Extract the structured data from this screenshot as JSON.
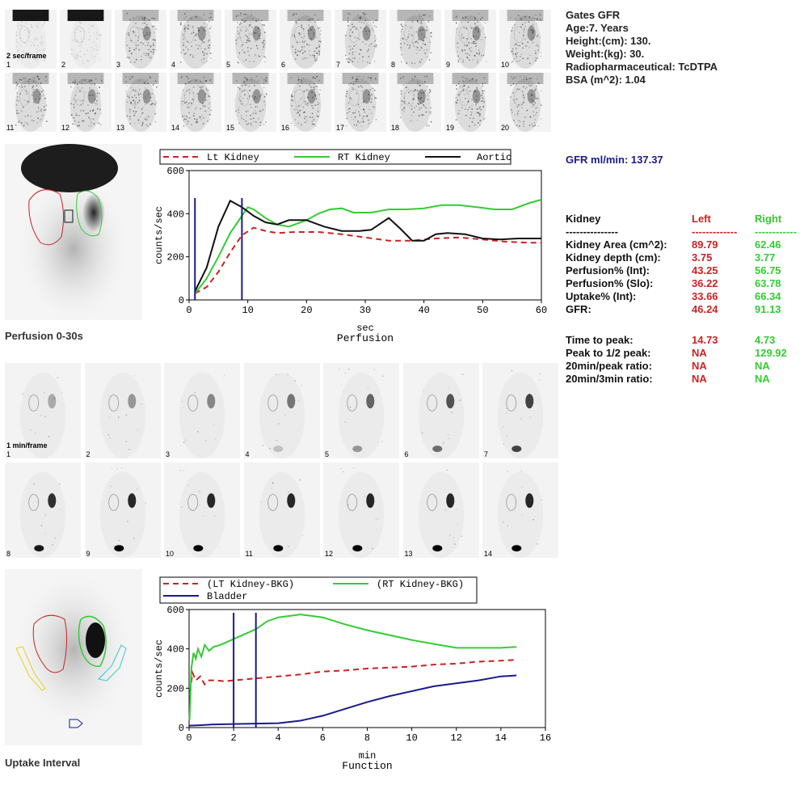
{
  "info": {
    "title": "Gates GFR",
    "age": "Age:7. Years",
    "height": "Height:(cm): 130.",
    "weight": "Weight:(kg): 30.",
    "radiopharm": "Radiopharmaceutical: TcDTPA",
    "bsa": "BSA (m^2): 1.04"
  },
  "gfr_total": "GFR ml/min: 137.37",
  "flow_frames": {
    "rate": "2 sec/frame",
    "numbers": [
      "1",
      "2",
      "3",
      "4",
      "5",
      "6",
      "7",
      "8",
      "9",
      "10",
      "11",
      "12",
      "13",
      "14",
      "15",
      "16",
      "17",
      "18",
      "19",
      "20"
    ]
  },
  "uptake_frames": {
    "rate": "1 min/frame",
    "numbers": [
      "1",
      "2",
      "3",
      "4",
      "5",
      "6",
      "7",
      "8",
      "9",
      "10",
      "11",
      "12",
      "13",
      "14"
    ]
  },
  "labels": {
    "perfusion_panel": "Perfusion 0-30s",
    "uptake_panel": "Uptake Interval"
  },
  "results": {
    "header": [
      "Kidney",
      "Left",
      "Right"
    ],
    "dashes": [
      "---------------",
      "-------------",
      "------------"
    ],
    "rows": [
      [
        "Kidney Area (cm^2):",
        "89.79",
        "62.46"
      ],
      [
        "Kidney depth (cm):",
        "3.75",
        "3.77"
      ],
      [
        "Perfusion% (Int):",
        "43.25",
        "56.75"
      ],
      [
        "Perfusion% (Slo):",
        "36.22",
        "63.78"
      ],
      [
        "Uptake% (Int):",
        "33.66",
        "66.34"
      ],
      [
        "GFR:",
        "46.24",
        "91.13"
      ]
    ],
    "timing_rows": [
      [
        "Time to peak:",
        "14.73",
        "4.73"
      ],
      [
        "Peak to 1/2 peak:",
        "NA",
        "129.92"
      ],
      [
        "20min/peak ratio:",
        "NA",
        "NA"
      ],
      [
        "20min/3min ratio:",
        "NA",
        "NA"
      ]
    ]
  },
  "chart_data": [
    {
      "type": "line",
      "title": "Perfusion",
      "xlabel": "sec",
      "ylabel": "counts/sec",
      "xlim": [
        0,
        60
      ],
      "ylim": [
        0,
        600
      ],
      "xticks": [
        0,
        10,
        20,
        30,
        40,
        50,
        60
      ],
      "yticks": [
        0,
        200,
        400,
        600
      ],
      "vlines": [
        1,
        9
      ],
      "series": [
        {
          "name": "Lt Kidney",
          "color": "#cc2222",
          "dash": true,
          "points": [
            [
              1,
              30
            ],
            [
              3,
              60
            ],
            [
              5,
              130
            ],
            [
              7,
              220
            ],
            [
              9,
              300
            ],
            [
              11,
              335
            ],
            [
              13,
              320
            ],
            [
              15,
              310
            ],
            [
              18,
              315
            ],
            [
              22,
              315
            ],
            [
              26,
              305
            ],
            [
              30,
              290
            ],
            [
              34,
              275
            ],
            [
              38,
              275
            ],
            [
              42,
              285
            ],
            [
              46,
              290
            ],
            [
              50,
              280
            ],
            [
              54,
              270
            ],
            [
              58,
              265
            ],
            [
              60,
              265
            ]
          ]
        },
        {
          "name": "RT Kidney",
          "color": "#33cc33",
          "dash": false,
          "points": [
            [
              1,
              30
            ],
            [
              3,
              100
            ],
            [
              5,
              200
            ],
            [
              7,
              310
            ],
            [
              9,
              390
            ],
            [
              10,
              430
            ],
            [
              11,
              420
            ],
            [
              13,
              380
            ],
            [
              15,
              350
            ],
            [
              17,
              340
            ],
            [
              20,
              370
            ],
            [
              22,
              400
            ],
            [
              24,
              420
            ],
            [
              26,
              425
            ],
            [
              28,
              405
            ],
            [
              31,
              405
            ],
            [
              34,
              420
            ],
            [
              37,
              420
            ],
            [
              40,
              425
            ],
            [
              43,
              440
            ],
            [
              46,
              440
            ],
            [
              49,
              430
            ],
            [
              52,
              420
            ],
            [
              55,
              420
            ],
            [
              58,
              450
            ],
            [
              60,
              465
            ]
          ]
        },
        {
          "name": "Aortic",
          "color": "#111111",
          "dash": false,
          "points": [
            [
              1,
              40
            ],
            [
              3,
              150
            ],
            [
              5,
              340
            ],
            [
              7,
              460
            ],
            [
              9,
              430
            ],
            [
              10,
              410
            ],
            [
              11,
              390
            ],
            [
              13,
              360
            ],
            [
              15,
              350
            ],
            [
              17,
              370
            ],
            [
              20,
              370
            ],
            [
              23,
              340
            ],
            [
              26,
              320
            ],
            [
              29,
              320
            ],
            [
              31,
              325
            ],
            [
              34,
              380
            ],
            [
              36,
              330
            ],
            [
              38,
              275
            ],
            [
              40,
              275
            ],
            [
              42,
              305
            ],
            [
              44,
              310
            ],
            [
              47,
              305
            ],
            [
              50,
              285
            ],
            [
              53,
              280
            ],
            [
              56,
              285
            ],
            [
              60,
              285
            ]
          ]
        }
      ]
    },
    {
      "type": "line",
      "title": "Function",
      "xlabel": "min",
      "ylabel": "counts/sec",
      "xlim": [
        0,
        16
      ],
      "ylim": [
        0,
        600
      ],
      "xticks": [
        0,
        2,
        4,
        6,
        8,
        10,
        12,
        14,
        16
      ],
      "yticks": [
        0,
        200,
        400,
        600
      ],
      "vlines": [
        2,
        3
      ],
      "series": [
        {
          "name": "(LT Kidney-BKG)",
          "color": "#cc2222",
          "dash": true,
          "points": [
            [
              0.05,
              180
            ],
            [
              0.15,
              280
            ],
            [
              0.3,
              240
            ],
            [
              0.5,
              260
            ],
            [
              0.7,
              220
            ],
            [
              0.9,
              240
            ],
            [
              1.2,
              240
            ],
            [
              1.6,
              235
            ],
            [
              2,
              240
            ],
            [
              2.5,
              245
            ],
            [
              3,
              250
            ],
            [
              4,
              260
            ],
            [
              5,
              270
            ],
            [
              6,
              285
            ],
            [
              7,
              290
            ],
            [
              8,
              300
            ],
            [
              9,
              305
            ],
            [
              10,
              310
            ],
            [
              11,
              320
            ],
            [
              12,
              325
            ],
            [
              13,
              335
            ],
            [
              14,
              340
            ],
            [
              14.7,
              345
            ]
          ]
        },
        {
          "name": "(RT Kidney-BKG)",
          "color": "#33cc33",
          "dash": false,
          "points": [
            [
              0.02,
              40
            ],
            [
              0.1,
              300
            ],
            [
              0.2,
              380
            ],
            [
              0.3,
              350
            ],
            [
              0.4,
              400
            ],
            [
              0.55,
              360
            ],
            [
              0.7,
              420
            ],
            [
              0.9,
              390
            ],
            [
              1.1,
              410
            ],
            [
              1.4,
              420
            ],
            [
              1.8,
              440
            ],
            [
              2.2,
              460
            ],
            [
              2.6,
              480
            ],
            [
              3,
              500
            ],
            [
              3.5,
              540
            ],
            [
              4,
              560
            ],
            [
              5,
              575
            ],
            [
              6,
              560
            ],
            [
              7,
              525
            ],
            [
              8,
              495
            ],
            [
              9,
              470
            ],
            [
              10,
              445
            ],
            [
              11,
              425
            ],
            [
              12,
              405
            ],
            [
              13,
              405
            ],
            [
              14,
              405
            ],
            [
              14.7,
              410
            ]
          ]
        },
        {
          "name": "Bladder",
          "color": "#1a1a8c",
          "dash": false,
          "points": [
            [
              0,
              10
            ],
            [
              0.5,
              12
            ],
            [
              1,
              15
            ],
            [
              2,
              18
            ],
            [
              3,
              20
            ],
            [
              4,
              22
            ],
            [
              5,
              35
            ],
            [
              6,
              60
            ],
            [
              7,
              95
            ],
            [
              8,
              130
            ],
            [
              9,
              160
            ],
            [
              10,
              185
            ],
            [
              11,
              210
            ],
            [
              12,
              225
            ],
            [
              13,
              240
            ],
            [
              14,
              260
            ],
            [
              14.7,
              265
            ]
          ]
        }
      ]
    }
  ]
}
